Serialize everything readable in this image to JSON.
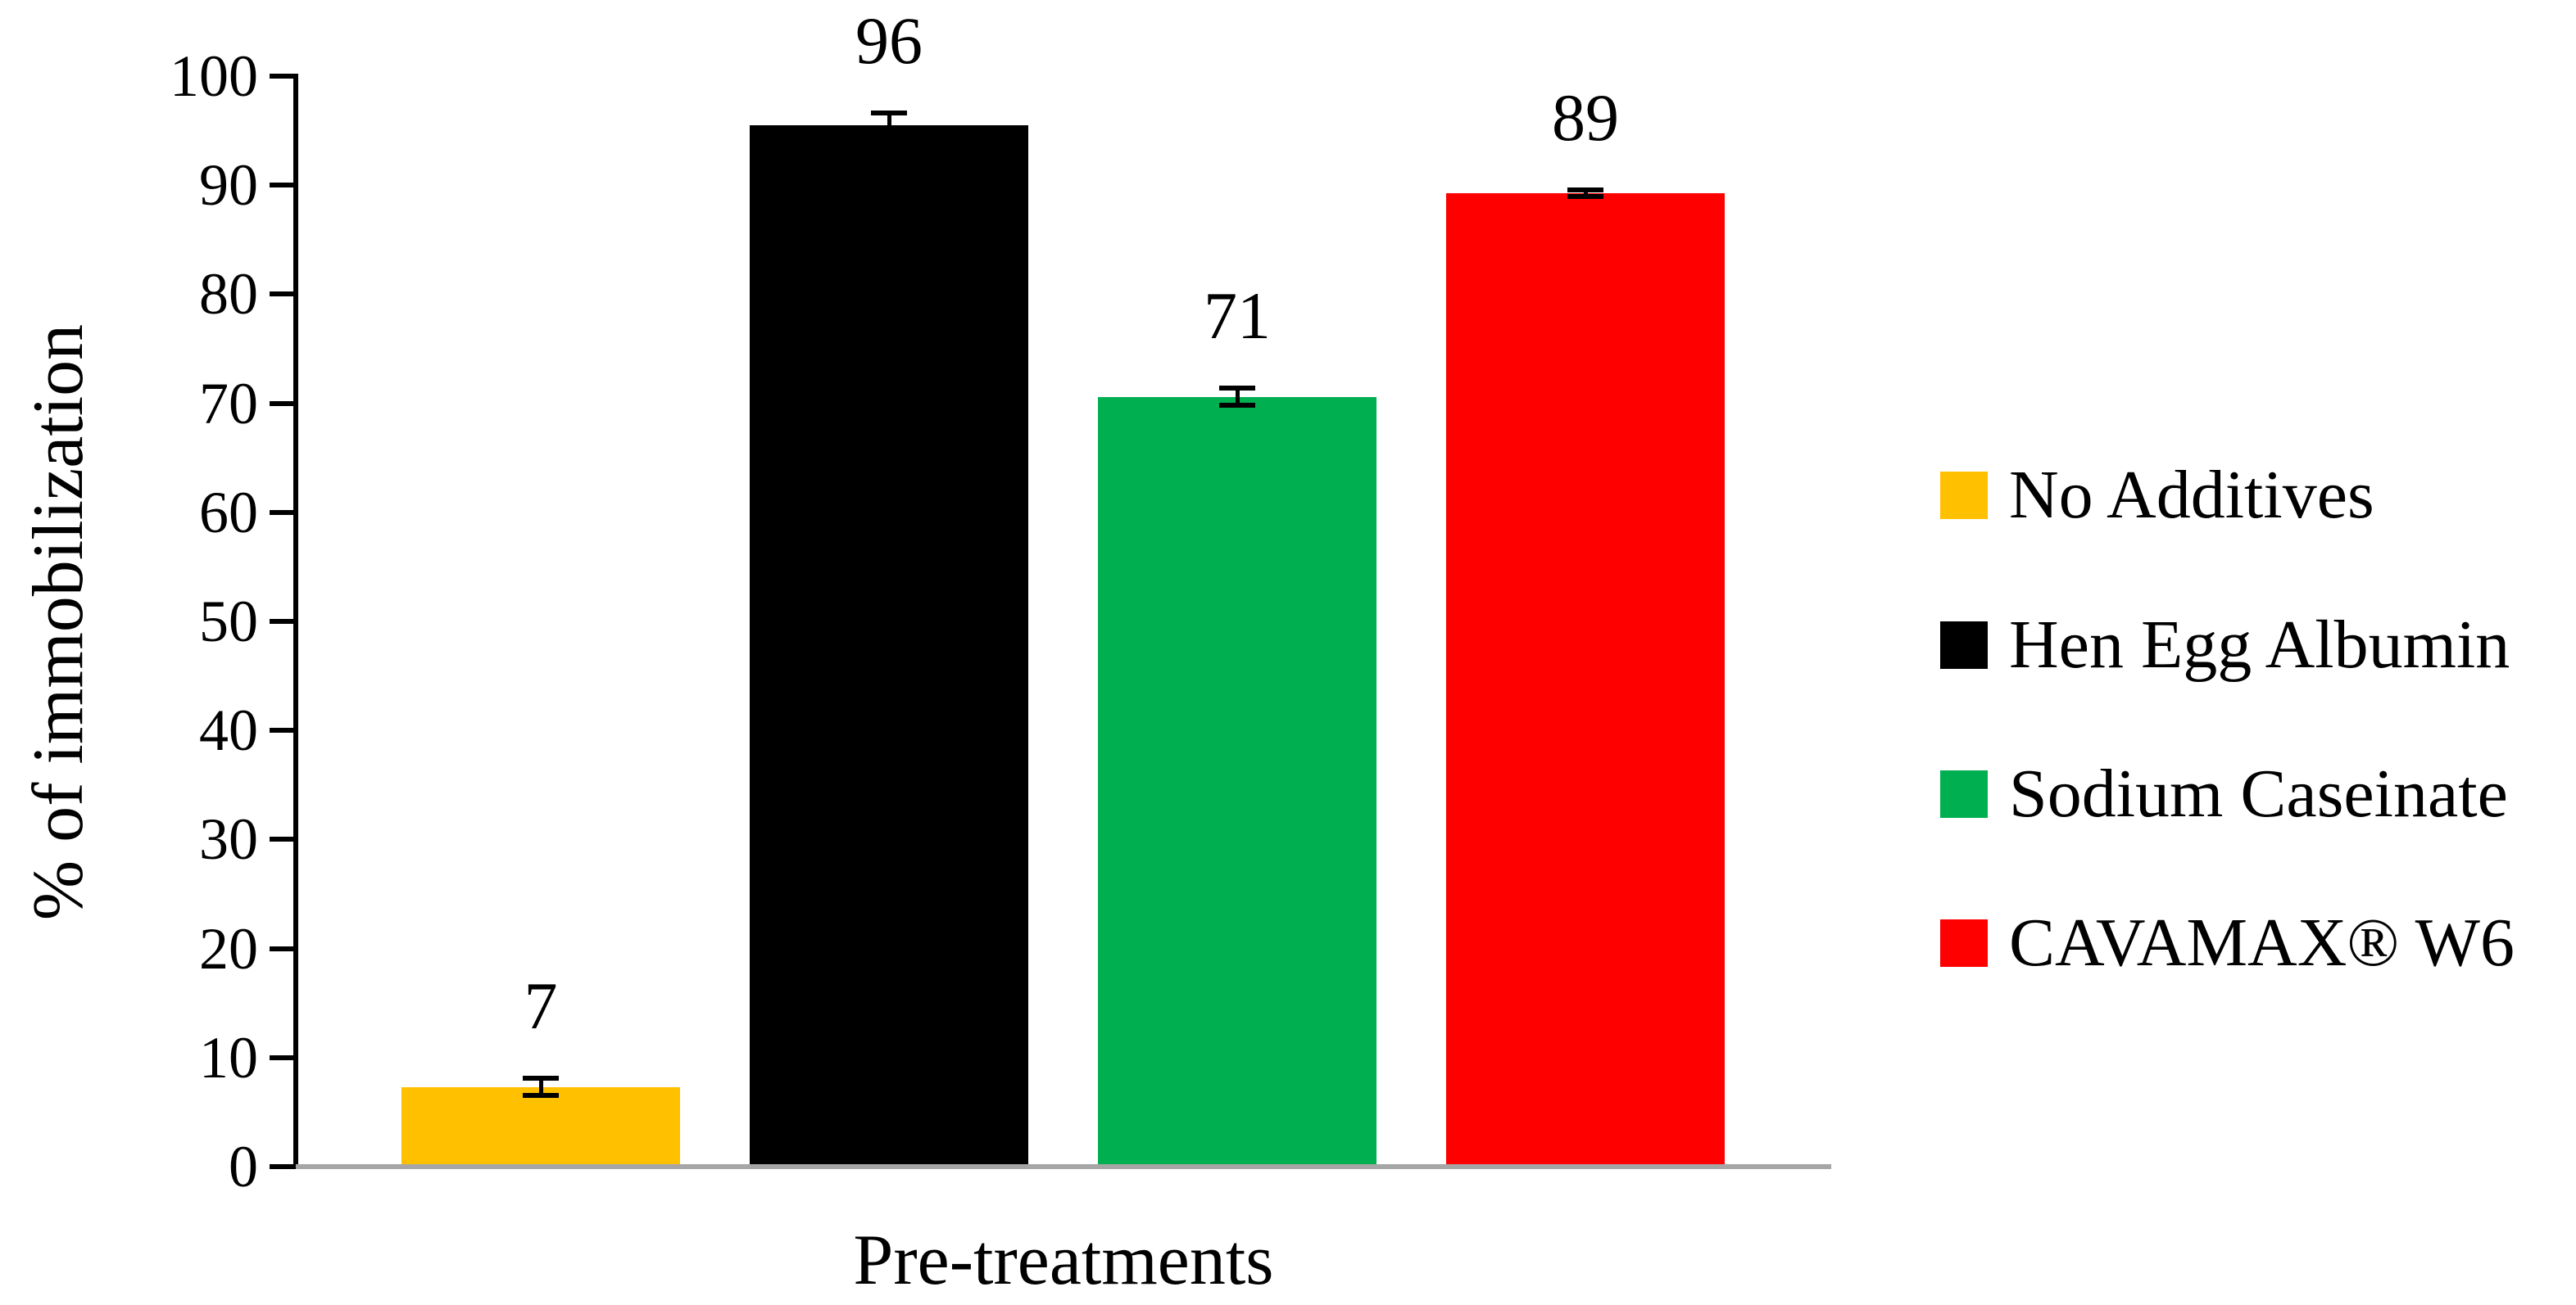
{
  "chart_data": {
    "type": "bar",
    "title": "",
    "xlabel": "Pre-treatments",
    "ylabel": "% of immobilization",
    "categories": [
      "No Additives",
      "Hen Egg Albumin",
      "Sodium Caseinate",
      "CAVAMAX® W6"
    ],
    "values": [
      7,
      96,
      71,
      89
    ],
    "data_labels": [
      "7",
      "96",
      "71",
      "89"
    ],
    "bar_heights_precise": [
      7.3,
      95.5,
      70.6,
      89.3
    ],
    "error_bars_plus_minus": [
      0.8,
      1.1,
      0.8,
      0.3
    ],
    "series_colors": [
      "#FFC000",
      "#000000",
      "#00B050",
      "#FF0000"
    ],
    "ylim": [
      0,
      100
    ],
    "ytick_step": 10,
    "ytick_labels": [
      "0",
      "10",
      "20",
      "30",
      "40",
      "50",
      "60",
      "70",
      "80",
      "90",
      "100"
    ],
    "grid": "off",
    "legend_position": "right",
    "legend": [
      {
        "label": "No Additives",
        "color": "#FFC000"
      },
      {
        "label": "Hen Egg Albumin",
        "color": "#000000"
      },
      {
        "label": "Sodium Caseinate",
        "color": "#00B050"
      },
      {
        "label": "CAVAMAX® W6",
        "color": "#FF0000"
      }
    ],
    "axis_colors": {
      "y_axis": "#000000",
      "x_baseline": "#A6A6A6"
    }
  }
}
